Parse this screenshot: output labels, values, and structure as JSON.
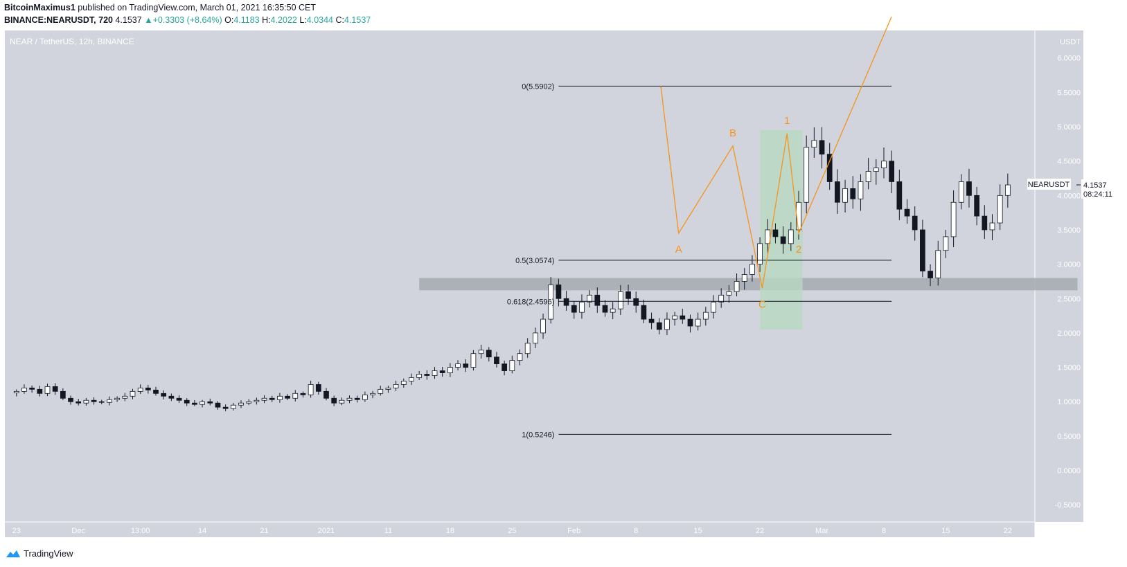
{
  "header": {
    "publisher": "BitcoinMaximus1",
    "published_text": "published on TradingView.com, March 01, 2021 16:35:50 CET",
    "symbol_line": "BINANCE:NEARUSDT, 720",
    "last": "4.1537",
    "change": "+0.3303 (+8.64%)",
    "o_label": "O:",
    "o": "4.1183",
    "h_label": "H:",
    "h": "4.2022",
    "l_label": "L:",
    "l": "4.0344",
    "c_label": "C:",
    "c": "4.1537"
  },
  "footer": {
    "brand": "TradingView"
  },
  "colors": {
    "pane_bg": "#d1d4dc",
    "wave": "#f7931a",
    "zone": "#a6a9b0",
    "green_box": "#b8d8c0"
  },
  "chart_data": {
    "type": "candlestick",
    "title": "NEAR / TetherUS, 12h, BINANCE",
    "ylabel": "USDT",
    "ylim": [
      -0.75,
      6.4
    ],
    "y_ticks": [
      "6.0000",
      "5.5000",
      "5.0000",
      "4.5000",
      "4.0000",
      "3.5000",
      "3.0000",
      "2.5000",
      "2.0000",
      "1.5000",
      "1.0000",
      "0.5000",
      "0.0000",
      "-0.5000"
    ],
    "y_tick_values": [
      6.0,
      5.5,
      5.0,
      4.5,
      4.0,
      3.5,
      3.0,
      2.5,
      2.0,
      1.5,
      1.0,
      0.5,
      0.0,
      -0.5
    ],
    "x_ticks": [
      {
        "label": "23",
        "t": 0
      },
      {
        "label": "Dec",
        "t": 8
      },
      {
        "label": "13:00",
        "t": 16
      },
      {
        "label": "14",
        "t": 24
      },
      {
        "label": "21",
        "t": 32
      },
      {
        "label": "2021",
        "t": 40
      },
      {
        "label": "11",
        "t": 48
      },
      {
        "label": "18",
        "t": 56
      },
      {
        "label": "25",
        "t": 64
      },
      {
        "label": "Feb",
        "t": 72
      },
      {
        "label": "8",
        "t": 80
      },
      {
        "label": "15",
        "t": 88
      },
      {
        "label": "22",
        "t": 96
      },
      {
        "label": "Mar",
        "t": 104
      },
      {
        "label": "8",
        "t": 112
      },
      {
        "label": "15",
        "t": 120
      },
      {
        "label": "22",
        "t": 128
      }
    ],
    "t_range": [
      -1.5,
      131.5
    ],
    "series_close": [
      1.15,
      1.2,
      1.18,
      1.12,
      1.22,
      1.15,
      1.05,
      1.0,
      0.98,
      1.02,
      1.0,
      0.99,
      1.03,
      1.05,
      1.08,
      1.15,
      1.2,
      1.17,
      1.12,
      1.08,
      1.05,
      1.02,
      0.98,
      0.96,
      1.0,
      0.98,
      0.92,
      0.9,
      0.95,
      0.98,
      1.0,
      1.02,
      1.05,
      1.03,
      1.08,
      1.05,
      1.12,
      1.1,
      1.25,
      1.15,
      1.05,
      0.98,
      1.02,
      1.05,
      1.03,
      1.1,
      1.12,
      1.18,
      1.2,
      1.25,
      1.3,
      1.35,
      1.4,
      1.38,
      1.45,
      1.42,
      1.5,
      1.55,
      1.5,
      1.7,
      1.75,
      1.65,
      1.55,
      1.45,
      1.6,
      1.7,
      1.85,
      2.0,
      2.2,
      2.7,
      2.5,
      2.4,
      2.3,
      2.45,
      2.55,
      2.4,
      2.3,
      2.35,
      2.6,
      2.5,
      2.4,
      2.2,
      2.15,
      2.05,
      2.2,
      2.25,
      2.2,
      2.1,
      2.2,
      2.3,
      2.45,
      2.55,
      2.6,
      2.75,
      2.85,
      3.0,
      3.3,
      3.5,
      3.4,
      3.3,
      3.5,
      3.9,
      4.7,
      4.8,
      4.6,
      4.2,
      3.9,
      4.1,
      3.95,
      4.2,
      4.35,
      4.4,
      4.5,
      4.2,
      3.8,
      3.7,
      3.5,
      2.9,
      2.8,
      3.2,
      3.4,
      3.9,
      4.2,
      4.0,
      3.7,
      3.5,
      3.6,
      4.0,
      4.1537
    ],
    "fib_levels": [
      {
        "label": "0(5.5902)",
        "value": 5.5902
      },
      {
        "label": "0.5(3.0574)",
        "value": 3.0574
      },
      {
        "label": "0.618(2.4596)",
        "value": 2.4596
      },
      {
        "label": "1(0.5246)",
        "value": 0.5246
      }
    ],
    "fib_t_range": [
      70,
      113
    ],
    "support_zone": {
      "low": 2.62,
      "high": 2.8,
      "t_from": 52,
      "t_to": 137
    },
    "highlight_box": {
      "low": 2.05,
      "high": 4.95,
      "t_from": 96.0,
      "t_to": 101.5
    },
    "wave_points": [
      {
        "t": 83.2,
        "v": 5.5902,
        "label": ""
      },
      {
        "t": 85.5,
        "v": 3.45,
        "label": "A"
      },
      {
        "t": 92.5,
        "v": 4.72,
        "label": "B"
      },
      {
        "t": 96.3,
        "v": 2.65,
        "label": "C"
      },
      {
        "t": 99.5,
        "v": 4.9,
        "label": "1"
      },
      {
        "t": 101.0,
        "v": 3.45,
        "label": "2"
      },
      {
        "t": 113,
        "v": 6.6,
        "label": ""
      }
    ],
    "price_label": {
      "symbol": "NEARUSDT",
      "value": "4.1537",
      "countdown": "08:24:11"
    }
  }
}
